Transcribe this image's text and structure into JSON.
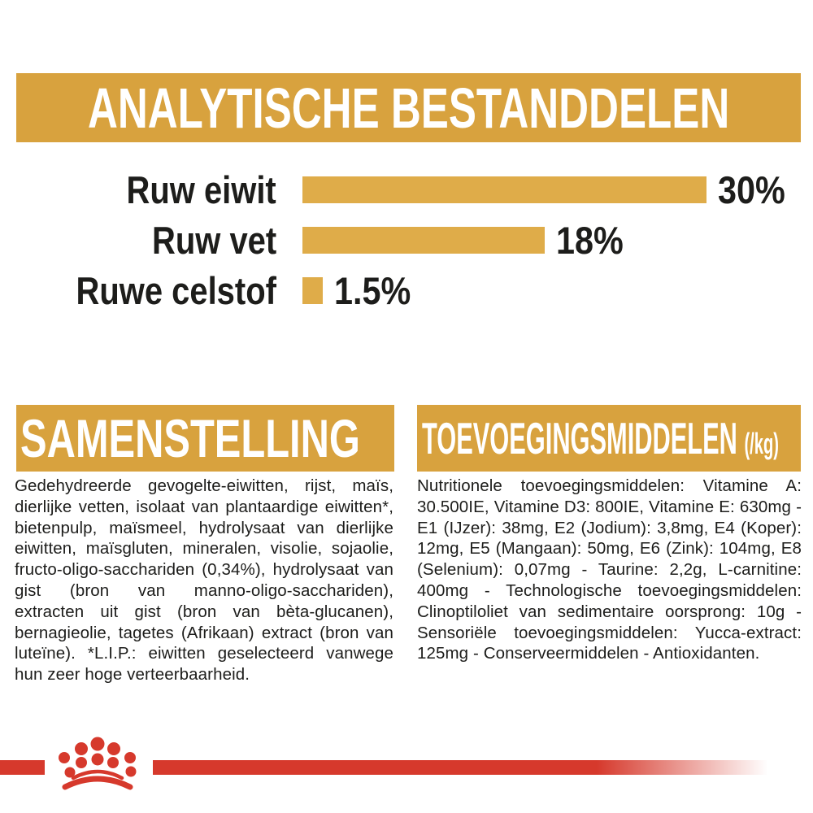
{
  "colors": {
    "gold_banner": "#d8a23e",
    "gold_bar": "#dfac49",
    "red": "#d6392c",
    "text": "#1d1d1b",
    "banner_text": "#ffffff",
    "background": "#ffffff"
  },
  "analytics": {
    "title": "ANALYTISCHE BESTANDDELEN",
    "rows": [
      {
        "label": "Ruw eiwit",
        "value_label": "30%"
      },
      {
        "label": "Ruw vet",
        "value_label": "18%"
      },
      {
        "label": "Ruwe celstof",
        "value_label": "1.5%"
      }
    ]
  },
  "chart_data": {
    "type": "bar",
    "orientation": "horizontal",
    "title": "ANALYTISCHE BESTANDDELEN",
    "categories": [
      "Ruw eiwit",
      "Ruw vet",
      "Ruwe celstof"
    ],
    "values": [
      30,
      18,
      1.5
    ],
    "value_labels": [
      "30%",
      "18%",
      "1.5%"
    ],
    "xlim": [
      0,
      30
    ],
    "bar_color": "#dfac49",
    "grid": false,
    "legend": false
  },
  "composition": {
    "title": "SAMENSTELLING",
    "body": "Gedehydreerde gevogelte-eiwitten, rijst, maïs, dierlijke vetten, isolaat van plantaardige eiwitten*, bietenpulp, maïsmeel, hydrolysaat van dierlijke eiwitten, maïsgluten, mineralen, visolie, sojaolie, fructo-oligo-sacchariden (0,34%), hydrolysaat van gist (bron van manno-oligo-sacchariden), extracten uit gist (bron van bèta-glucanen), bernagieolie, tagetes (Afrikaan) extract (bron van luteïne). *L.I.P.: eiwitten geselecteerd vanwege hun zeer hoge verteerbaarheid."
  },
  "additives": {
    "title": "TOEVOEGINGSMIDDELEN",
    "title_suffix": "(/kg)",
    "body": "Nutritionele toevoegingsmiddelen: Vitamine A: 30.500IE, Vitamine D3: 800IE, Vitamine E: 630mg - E1 (IJzer): 38mg, E2 (Jodium): 3,8mg, E4 (Koper): 12mg, E5 (Mangaan): 50mg, E6 (Zink): 104mg, E8 (Selenium): 0,07mg - Taurine: 2,2g, L-carnitine: 400mg - Technologische toevoegingsmiddelen: Clinoptiloliet van sedimentaire oorsprong: 10g - Sensoriële toevoegingsmiddelen: Yucca-extract: 125mg - Conserveermiddelen - Antioxidanten."
  },
  "footer": {
    "brand_mark": "royal-canin-crown"
  }
}
